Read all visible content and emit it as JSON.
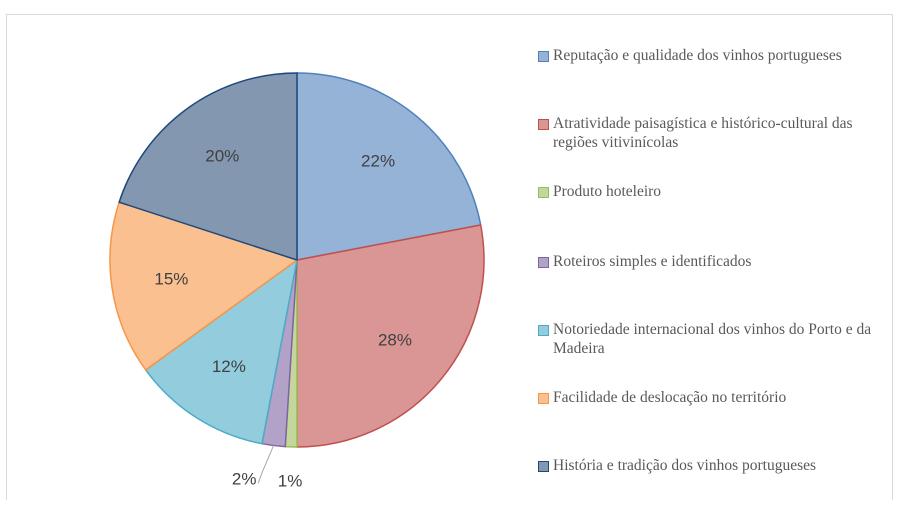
{
  "chart_data": {
    "type": "pie",
    "categories": [
      "Reputação e qualidade dos vinhos portugueses",
      "Atratividade paisagística e histórico-cultural das regiões vitivinícolas",
      "Produto hoteleiro",
      "Roteiros simples e identificados",
      "Notoriedade internacional dos vinhos do Porto e da Madeira",
      "Facilidade de deslocação no território",
      "História e tradição dos vinhos portugueses"
    ],
    "values": [
      22,
      28,
      1,
      2,
      12,
      15,
      20
    ],
    "value_labels": [
      "22%",
      "28%",
      "1%",
      "2%",
      "12%",
      "15%",
      "20%"
    ],
    "colors": [
      "#95b3d7",
      "#d99694",
      "#c3d69b",
      "#b3a2c7",
      "#93cddd",
      "#fac090",
      "#8497b0"
    ],
    "edge_colors": [
      "#4f81bd",
      "#c0504d",
      "#9bbb59",
      "#8064a2",
      "#4bacc6",
      "#f79646",
      "#1f497d"
    ],
    "legend": "right"
  }
}
